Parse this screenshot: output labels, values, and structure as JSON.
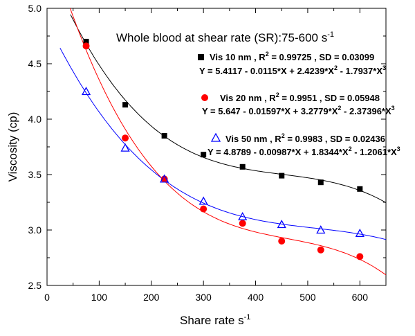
{
  "chart_data": {
    "type": "scatter",
    "title": "Whole blood at shear rate (SR):75-600 s",
    "title_superscript": "-1",
    "xlabel": "Share rate s",
    "xlabel_superscript": "-1",
    "ylabel": "Viscosity (cp)",
    "xlim": [
      0,
      650
    ],
    "ylim": [
      2.5,
      5.0
    ],
    "xticks": [
      "0",
      "100",
      "200",
      "300",
      "400",
      "500",
      "600"
    ],
    "yticks": [
      "2.5",
      "3.0",
      "3.5",
      "4.0",
      "4.5",
      "5.0"
    ],
    "x": [
      75,
      150,
      225,
      300,
      375,
      450,
      525,
      600
    ],
    "series": [
      {
        "name": "Vis 10 nm",
        "label_rest": " ,  R",
        "r2_label": " = 0.99725  ,  SD = 0.03099",
        "equation": "Y = 5.4117 - 0.0115*X + 2.4239*X",
        "equation_mid": " - 1.7937*X",
        "color": "#000000",
        "line_color": "#000000",
        "marker": "square",
        "values": [
          4.7,
          4.13,
          3.85,
          3.68,
          3.57,
          3.49,
          3.43,
          3.37
        ],
        "fit": [
          5.4117,
          -0.0115,
          2.4239,
          -1.7937
        ]
      },
      {
        "name": "Vis 20 nm",
        "label_rest": " , R",
        "r2_label": "  =  0.9951  ,  SD = 0.05948",
        "equation": "Y = 5.647 - 0.01597*X + 3.2779*X",
        "equation_mid": " - 2.37396*X",
        "color": "#ff0000",
        "line_color": "#ff0000",
        "marker": "circle",
        "values": [
          4.66,
          3.83,
          3.46,
          3.19,
          3.06,
          2.9,
          2.82,
          2.76
        ],
        "fit": [
          5.647,
          -0.01597,
          3.2779,
          -2.37396
        ]
      },
      {
        "name": "Vis 50 nm",
        "label_rest": " ,  R",
        "r2_label": " = 0.9983  ,  SD = 0.02436",
        "equation": "Y = 4.8789 - 0.00987*X + 1.8344*X",
        "equation_mid": " - 1.2061*X",
        "color": "#0000ff",
        "line_color": "#0000ff",
        "marker": "triangle",
        "values": [
          4.25,
          3.74,
          3.46,
          3.26,
          3.12,
          3.05,
          3.0,
          2.97
        ],
        "fit": [
          4.8789,
          -0.00987,
          1.8344,
          -1.2061
        ]
      }
    ],
    "sup2": "2",
    "sup3": "3",
    "grid": false,
    "legend": "top-right"
  }
}
